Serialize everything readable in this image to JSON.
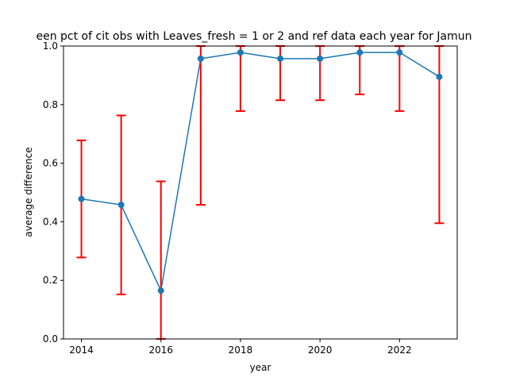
{
  "chart_data": {
    "type": "line",
    "title": "een pct of cit obs with Leaves_fresh = 1 or 2 and ref data each year for Jamun",
    "xlabel": "year",
    "ylabel": "average difference",
    "xlim": [
      2013.55,
      2023.45
    ],
    "ylim": [
      0.0,
      1.0
    ],
    "xticks": [
      2014,
      2016,
      2018,
      2020,
      2022
    ],
    "yticks": [
      0.0,
      0.2,
      0.4,
      0.6,
      0.8,
      1.0
    ],
    "ytick_labels": [
      "0.0",
      "0.2",
      "0.4",
      "0.6",
      "0.8",
      "1.0"
    ],
    "grid": false,
    "legend": "none",
    "x": [
      2014,
      2015,
      2016,
      2017,
      2018,
      2019,
      2020,
      2021,
      2022,
      2023
    ],
    "series": [
      {
        "values": [
          0.478,
          0.458,
          0.165,
          0.957,
          0.978,
          0.957,
          0.957,
          0.978,
          0.978,
          0.895
        ],
        "error_low": [
          0.278,
          0.152,
          0.0,
          0.458,
          0.778,
          0.815,
          0.815,
          0.835,
          0.778,
          0.395
        ],
        "error_high": [
          0.678,
          0.763,
          0.538,
          1.0,
          1.0,
          1.0,
          1.0,
          1.0,
          1.0,
          1.0
        ]
      }
    ],
    "colors": {
      "line": "#1f77b4",
      "marker": "#1f77b4",
      "errorbar": "#ff0000"
    }
  }
}
